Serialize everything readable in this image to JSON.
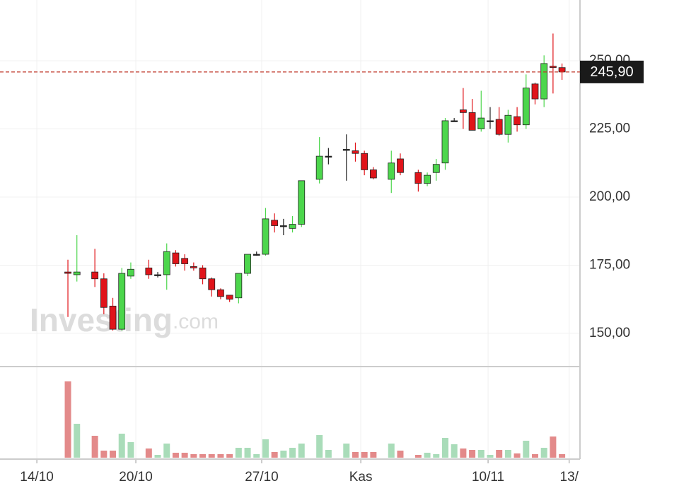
{
  "chart_data": {
    "type": "candlestick",
    "watermark_brand": "Investing",
    "watermark_suffix": ".com",
    "x": [
      0,
      1,
      3,
      4,
      5,
      6,
      7,
      9,
      10,
      11,
      12,
      13,
      14,
      15,
      16,
      17,
      18,
      19,
      20,
      21,
      22,
      23,
      24,
      25,
      26,
      28,
      29,
      31,
      32,
      33,
      34,
      36,
      37,
      39,
      40,
      41,
      42,
      43,
      44,
      45,
      46,
      47,
      48,
      49,
      50,
      51,
      52,
      53,
      54,
      55
    ],
    "open": [
      172.5,
      171.5,
      172.5,
      170,
      160,
      151.5,
      171,
      174,
      171.5,
      171.5,
      179.5,
      177.5,
      174.5,
      174,
      170,
      166,
      164,
      163,
      172,
      179,
      179,
      191.5,
      189.5,
      188.5,
      190,
      206.5,
      215,
      217.5,
      217,
      216,
      210,
      206.5,
      214,
      209,
      205,
      209,
      212.5,
      228,
      232,
      231,
      225,
      228,
      228.5,
      223,
      229.5,
      226.5,
      241.5,
      236,
      248,
      247.5
    ],
    "high": [
      177,
      186,
      181,
      172,
      163,
      174,
      176,
      177,
      172.5,
      183,
      180.5,
      179,
      176,
      175,
      170.5,
      166.5,
      164,
      172,
      179,
      180,
      196,
      194,
      192,
      193,
      206,
      222,
      218,
      223,
      220,
      217,
      211,
      217,
      216,
      210,
      209,
      214,
      229,
      229,
      240,
      236,
      239,
      233,
      233,
      232,
      233,
      245,
      242,
      252,
      260,
      249
    ],
    "low": [
      156,
      169,
      167,
      157,
      151,
      151,
      170,
      170,
      170.5,
      166,
      174.5,
      173,
      173,
      168,
      163.5,
      162.5,
      161.5,
      161,
      171,
      178.5,
      178.5,
      187,
      186,
      187,
      189,
      205,
      212,
      206,
      213,
      208,
      206.5,
      201.5,
      208,
      202,
      204,
      206,
      210,
      228,
      225,
      224.5,
      224,
      225,
      222.5,
      220,
      224,
      225,
      234,
      233,
      238,
      243
    ],
    "close": [
      172,
      172.5,
      170,
      159.5,
      151.5,
      172,
      173.5,
      171.5,
      171.5,
      180,
      175.5,
      175.5,
      174,
      170,
      166,
      163.5,
      162.5,
      172,
      179,
      179,
      192,
      189.5,
      189.5,
      190,
      206,
      215,
      215,
      217.5,
      216,
      210,
      207,
      212.5,
      209,
      205,
      208,
      212,
      228,
      228,
      231,
      224.5,
      229,
      228,
      223,
      230,
      226.5,
      240,
      236,
      249,
      247.5,
      245.9
    ],
    "volume": [
      108,
      48,
      31,
      10,
      10,
      34,
      22,
      13,
      4,
      20,
      7,
      7,
      5,
      5,
      5,
      5,
      5,
      14,
      14,
      5,
      26,
      8,
      10,
      14,
      20,
      32,
      11,
      20,
      8,
      8,
      8,
      20,
      10,
      4,
      7,
      5,
      28,
      19,
      13,
      11,
      11,
      4,
      11,
      11,
      6,
      24,
      5,
      14,
      30,
      5
    ],
    "xlim": [
      -7.56,
      57.0
    ],
    "ylim": [
      137.8,
      272.3
    ],
    "vlim": [
      0,
      128
    ],
    "xticks": [
      {
        "value": -3.46,
        "label": "14/10"
      },
      {
        "value": 7.56,
        "label": "20/10"
      },
      {
        "value": 21.57,
        "label": "27/10"
      },
      {
        "value": 32.6,
        "label": "Kas"
      },
      {
        "value": 46.77,
        "label": "10/11"
      },
      {
        "value": 55.8,
        "label": "13/"
      }
    ],
    "yticks": [
      {
        "value": 150,
        "label": "150,00"
      },
      {
        "value": 175,
        "label": "175,00"
      },
      {
        "value": 200,
        "label": "200,00"
      },
      {
        "value": 225,
        "label": "225,00"
      },
      {
        "value": 250,
        "label": "250,00"
      }
    ],
    "last_price": {
      "value": 245.9,
      "label": "245,90"
    },
    "up_color": "#4cd64c",
    "down_color": "#e0141a",
    "flat_color": "#222222",
    "up_volume_color": "#a9dcb9",
    "down_volume_color": "#e38a8a",
    "grid": true
  }
}
